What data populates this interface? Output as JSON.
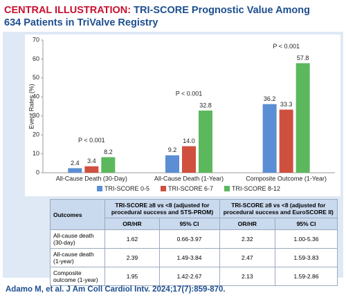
{
  "chart_data": {
    "type": "bar",
    "label": "CENTRAL ILLUSTRATION:",
    "title": "TRI-SCORE Prognostic Value Among 634 Patients in TriValve Registry",
    "y_label": "Event Rates (%)",
    "categories": [
      "All-Cause Death (30-Day)",
      "All-Cause Death (1-Year)",
      "Composite Outcome (1-Year)"
    ],
    "series": [
      {
        "name": "TRI-SCORE 0-5",
        "color": "#5b8ed4",
        "values": [
          2.4,
          9.2,
          36.2
        ],
        "value_labels": [
          "2.4",
          "9.2",
          "36.2"
        ]
      },
      {
        "name": "TRI-SCORE 6-7",
        "color": "#d0503f",
        "values": [
          3.4,
          14.0,
          33.3
        ],
        "value_labels": [
          "3.4",
          "14.0",
          "33.3"
        ]
      },
      {
        "name": "TRI-SCORE 8-12",
        "color": "#5cb85c",
        "values": [
          8.2,
          32.8,
          57.8
        ],
        "value_labels": [
          "8.2",
          "32.8",
          "57.8"
        ]
      }
    ],
    "annotations": [
      "P < 0.001",
      "P < 0.001",
      "P < 0.001"
    ],
    "ylim": [
      0,
      70
    ],
    "yticks": [
      0,
      10,
      20,
      30,
      40,
      50,
      60,
      70
    ],
    "legend": "bottom"
  },
  "table": {
    "header_groups": [
      "Outcomes",
      "TRI-SCORE ≥8 vs <8 (adjusted for procedural success and STS-PROM)",
      "TRI-SCORE ≥8 vs <8 (adjusted for procedural success and EuroSCORE II)"
    ],
    "subheaders": [
      "OR/HR",
      "95% CI",
      "OR/HR",
      "95% CI"
    ],
    "rows": [
      [
        "All-cause death (30-day)",
        "1.62",
        "0.66-3.97",
        "2.32",
        "1.00-5.36"
      ],
      [
        "All-cause death (1-year)",
        "2.39",
        "1.49-3.84",
        "2.47",
        "1.59-3.83"
      ],
      [
        "Composite outcome (1-year)",
        "1.95",
        "1.42-2.67",
        "2.13",
        "1.59-2.86"
      ]
    ]
  },
  "citation": "Adamo M, et al. J Am Coll Cardiol Intv. 2024;17(7):859-870."
}
